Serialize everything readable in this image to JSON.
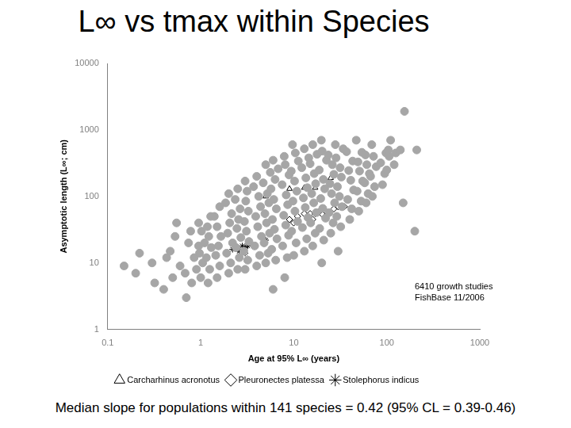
{
  "chart_data": {
    "type": "scatter",
    "title": "L∞ vs tmax within Species",
    "x_label": "Age at 95% L∞ (years)",
    "y_label": "Asymptotic length (L∞; cm)",
    "annotations": [
      "6410 growth studies",
      "FishBase 11/2006"
    ],
    "caption": "Median slope for populations within 141 species = 0.42 (95% CL = 0.39-0.46)",
    "log": true,
    "grid": false,
    "legend": "bottom",
    "xlim": [
      0.1,
      1000
    ],
    "xticks": [
      0.1,
      1,
      10,
      100,
      1000
    ],
    "ylim": [
      1,
      10000
    ],
    "yticks": [
      1,
      10,
      100,
      1000,
      10000
    ],
    "series": [
      {
        "color": "#a6a6a6",
        "marker": "circle",
        "x": [
          0.15,
          0.2,
          0.22,
          0.3,
          0.32,
          0.4,
          0.43,
          0.5,
          0.47,
          0.53,
          0.55,
          0.6,
          0.7,
          0.68,
          0.74,
          0.8,
          0.85,
          0.78,
          0.9,
          0.95,
          1,
          1.05,
          0.97,
          1.1,
          1.02,
          0.95,
          1.2,
          1.25,
          1.15,
          1.3,
          1.22,
          1.18,
          1.28,
          1.5,
          1.6,
          1.45,
          1.55,
          1.65,
          1.5,
          1.4,
          1.6,
          2,
          2.1,
          1.9,
          2.2,
          1.95,
          2.05,
          2.15,
          1.85,
          2,
          2.5,
          2.6,
          2.4,
          2.7,
          2.45,
          2.55,
          2.65,
          2.35,
          2.5,
          3,
          3.2,
          2.9,
          3.3,
          3.1,
          2.95,
          3.25,
          3.05,
          3.15,
          3,
          4,
          4.3,
          3.8,
          4.5,
          4.1,
          3.9,
          4.4,
          4.2,
          3.7,
          4,
          5,
          5.3,
          4.8,
          5.5,
          5.1,
          4.9,
          5.4,
          5.2,
          4.7,
          5.6,
          5,
          6,
          6.4,
          5.8,
          6.6,
          6.2,
          5.9,
          6.5,
          6.1,
          5.7,
          6.3,
          6.8,
          6,
          8,
          8.5,
          7.6,
          8.8,
          8.2,
          7.8,
          8.6,
          8.3,
          7.5,
          8.9,
          8.1,
          7.9,
          10,
          10.6,
          9.5,
          11,
          10.3,
          9.8,
          10.8,
          10.2,
          9.4,
          11.2,
          10.4,
          9.7,
          13,
          13.8,
          12.4,
          14.2,
          13.3,
          12.7,
          14,
          13.5,
          12.2,
          14.5,
          13,
          16,
          17,
          15.2,
          17.5,
          16.4,
          15.6,
          17.2,
          16.6,
          15,
          17.8,
          16,
          20,
          21,
          19,
          22,
          20.5,
          19.5,
          21.5,
          20.8,
          18.8,
          22.5,
          20.2,
          19.8,
          25,
          26.5,
          24,
          27.5,
          25.5,
          24.5,
          27,
          26,
          23.5,
          28,
          30,
          32,
          29,
          33,
          31,
          29.5,
          32.5,
          31.5,
          28.5,
          34,
          40,
          42,
          38,
          44,
          41,
          39,
          43,
          37,
          50,
          53,
          48,
          55,
          51,
          49,
          54,
          47,
          60,
          63,
          58,
          65,
          61,
          59,
          70,
          74,
          67,
          77,
          72,
          69,
          90,
          95,
          86,
          98,
          100,
          106,
          104,
          110,
          120,
          125,
          150,
          140,
          155,
          200,
          210
        ],
        "values": [
          9,
          7,
          14,
          10,
          5,
          4,
          12,
          6,
          15,
          25,
          40,
          9,
          3,
          7,
          20,
          5,
          12,
          30,
          8,
          18,
          6,
          10,
          14,
          20,
          30,
          40,
          5,
          8,
          12,
          17,
          25,
          35,
          50,
          6,
          9,
          13,
          18,
          25,
          35,
          50,
          70,
          7,
          10,
          14,
          20,
          28,
          40,
          55,
          80,
          110,
          8,
          12,
          17,
          24,
          33,
          45,
          65,
          90,
          130,
          8,
          11,
          15,
          21,
          30,
          42,
          60,
          85,
          120,
          170,
          9,
          13,
          18,
          25,
          35,
          50,
          70,
          100,
          140,
          200,
          10,
          14,
          20,
          28,
          40,
          55,
          80,
          110,
          160,
          230,
          300,
          4,
          11,
          16,
          23,
          32,
          45,
          65,
          90,
          130,
          180,
          260,
          350,
          6,
          12,
          18,
          26,
          37,
          52,
          75,
          105,
          150,
          210,
          300,
          400,
          13,
          20,
          30,
          42,
          60,
          85,
          120,
          170,
          240,
          340,
          450,
          600,
          15,
          23,
          34,
          48,
          68,
          95,
          135,
          190,
          270,
          380,
          520,
          18,
          28,
          40,
          57,
          80,
          110,
          155,
          220,
          310,
          430,
          600,
          10,
          22,
          33,
          47,
          66,
          93,
          130,
          180,
          250,
          350,
          480,
          700,
          28,
          40,
          57,
          80,
          110,
          155,
          215,
          300,
          420,
          600,
          15,
          35,
          50,
          70,
          100,
          140,
          195,
          270,
          380,
          520,
          45,
          65,
          90,
          125,
          175,
          245,
          340,
          470,
          60,
          85,
          120,
          170,
          240,
          330,
          460,
          700,
          80,
          110,
          160,
          220,
          300,
          420,
          100,
          140,
          200,
          280,
          400,
          600,
          150,
          220,
          320,
          450,
          250,
          400,
          500,
          700,
          300,
          450,
          80,
          500,
          1900,
          30,
          500
        ]
      },
      {
        "name": "Carcharhinus acronotus",
        "color": "#000000",
        "marker": "triangle",
        "x": [
          5,
          9,
          13,
          17,
          22,
          25
        ],
        "values": [
          100,
          130,
          135,
          135,
          175,
          190
        ]
      },
      {
        "name": "Pleuronectes platessa",
        "color": "#000000",
        "marker": "diamond",
        "x": [
          9,
          10,
          11,
          13,
          15,
          16,
          17,
          19,
          20,
          22,
          27,
          30,
          35
        ],
        "values": [
          45,
          40,
          50,
          55,
          55,
          45,
          55,
          60,
          55,
          60,
          65,
          70,
          70
        ]
      },
      {
        "name": "Stolephorus indicus",
        "color": "#000000",
        "marker": "x",
        "x": [
          2.2,
          2.5,
          2.6,
          2.8,
          3,
          3,
          3.2,
          5
        ],
        "values": [
          16,
          16,
          15,
          18,
          17,
          14,
          18,
          22
        ]
      }
    ]
  }
}
